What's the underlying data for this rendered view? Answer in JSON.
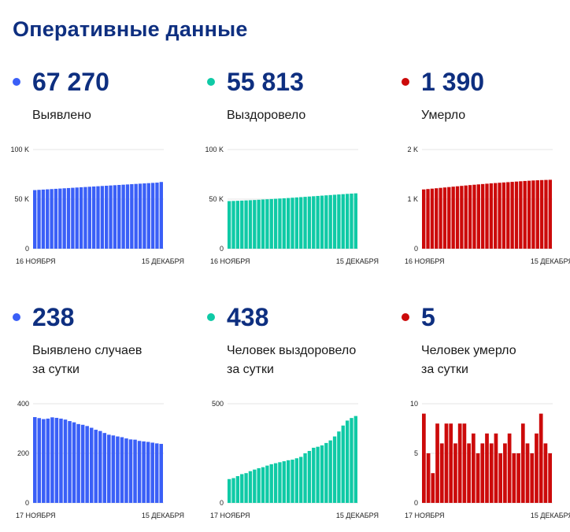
{
  "title": "Оперативные данные",
  "colors": {
    "blue": "#3a5ff7",
    "teal": "#0fcaa6",
    "red": "#cc0a0a",
    "navy": "#0e2f80"
  },
  "cards": [
    {
      "value": "67 270",
      "label": "Выявлено",
      "color": "#3a5ff7",
      "chart_data": {
        "type": "bar",
        "x_start": "16 НОЯБРЯ",
        "x_end": "15 ДЕКАБРЯ",
        "ylim": [
          0,
          100000
        ],
        "yticks": [
          "100 K",
          "50 K",
          "0"
        ],
        "values": [
          59080,
          59340,
          59600,
          59860,
          60120,
          60380,
          60640,
          60900,
          61160,
          61420,
          61680,
          61940,
          62200,
          62460,
          62720,
          62980,
          63240,
          63500,
          63760,
          64020,
          64280,
          64540,
          64800,
          65060,
          65320,
          65580,
          65840,
          66100,
          66360,
          66620,
          67270
        ]
      }
    },
    {
      "value": "55 813",
      "label": "Выздоровело",
      "color": "#0fcaa6",
      "chart_data": {
        "type": "bar",
        "x_start": "16 НОЯБРЯ",
        "x_end": "15 ДЕКАБРЯ",
        "ylim": [
          0,
          100000
        ],
        "yticks": [
          "100 K",
          "50 K",
          "0"
        ],
        "values": [
          48000,
          48150,
          48300,
          48500,
          48700,
          48900,
          49100,
          49350,
          49600,
          49850,
          50100,
          50350,
          50600,
          50850,
          51100,
          51400,
          51700,
          52000,
          52300,
          52600,
          52900,
          53200,
          53500,
          53800,
          54100,
          54400,
          54700,
          55000,
          55300,
          55550,
          55813
        ]
      }
    },
    {
      "value": "1 390",
      "label": "Умерло",
      "color": "#cc0a0a",
      "chart_data": {
        "type": "bar",
        "x_start": "16 НОЯБРЯ",
        "x_end": "15 ДЕКАБРЯ",
        "ylim": [
          0,
          2000
        ],
        "yticks": [
          "2 K",
          "1 K",
          "0"
        ],
        "values": [
          1195,
          1203,
          1211,
          1219,
          1227,
          1235,
          1243,
          1251,
          1259,
          1267,
          1275,
          1283,
          1290,
          1297,
          1304,
          1311,
          1318,
          1324,
          1330,
          1336,
          1342,
          1348,
          1354,
          1360,
          1366,
          1371,
          1376,
          1380,
          1384,
          1387,
          1390
        ]
      }
    },
    {
      "value": "238",
      "label": "Выявлено случаев\nза сутки",
      "color": "#3a5ff7",
      "chart_data": {
        "type": "bar",
        "x_start": "17 НОЯБРЯ",
        "x_end": "15 ДЕКАБРЯ",
        "ylim": [
          0,
          400
        ],
        "yticks": [
          "400",
          "200",
          "0"
        ],
        "values": [
          346,
          342,
          338,
          340,
          345,
          343,
          340,
          336,
          330,
          325,
          318,
          315,
          310,
          303,
          295,
          290,
          282,
          275,
          272,
          268,
          265,
          260,
          256,
          255,
          250,
          248,
          246,
          243,
          240,
          238
        ]
      }
    },
    {
      "value": "438",
      "label": "Человек выздоровело\nза сутки",
      "color": "#0fcaa6",
      "chart_data": {
        "type": "bar",
        "x_start": "17 НОЯБРЯ",
        "x_end": "15 ДЕКАБРЯ",
        "ylim": [
          0,
          500
        ],
        "yticks": [
          "500",
          "0"
        ],
        "values": [
          120,
          125,
          135,
          145,
          150,
          160,
          168,
          175,
          180,
          188,
          195,
          200,
          205,
          210,
          215,
          218,
          225,
          232,
          250,
          262,
          278,
          283,
          290,
          302,
          315,
          335,
          360,
          390,
          415,
          428,
          438
        ]
      }
    },
    {
      "value": "5",
      "label": "Человек умерло\nза сутки",
      "color": "#cc0a0a",
      "chart_data": {
        "type": "bar",
        "x_start": "17 НОЯБРЯ",
        "x_end": "15 ДЕКАБРЯ",
        "ylim": [
          0,
          10
        ],
        "yticks": [
          "10",
          "5",
          "0"
        ],
        "values": [
          9,
          5,
          3,
          8,
          6,
          8,
          8,
          6,
          8,
          8,
          6,
          7,
          5,
          6,
          7,
          6,
          7,
          5,
          6,
          7,
          5,
          5,
          8,
          6,
          5,
          7,
          9,
          6,
          5
        ]
      }
    }
  ]
}
